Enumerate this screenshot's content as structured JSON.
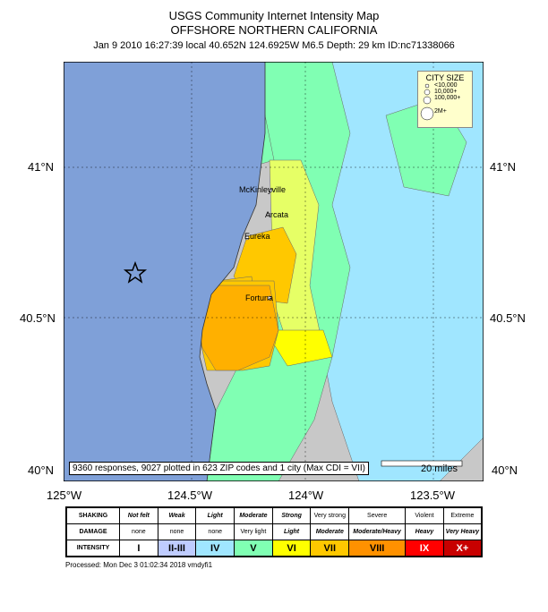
{
  "header": {
    "title": "USGS Community Internet Intensity Map",
    "region": "OFFSHORE NORTHERN CALIFORNIA",
    "event_info": "Jan 9 2010 16:27:39 local 40.652N 124.6925W M6.5 Depth: 29 km ID:nc71338066"
  },
  "axes": {
    "lat_labels": [
      "41°N",
      "40.5°N",
      "40°N"
    ],
    "lon_labels": [
      "125°W",
      "124.5°W",
      "124°W",
      "123.5°W"
    ]
  },
  "cities": [
    "McKinleyville",
    "Arcata",
    "Eureka",
    "Fortuna"
  ],
  "city_size_legend": {
    "title": "CITY SIZE",
    "items": [
      "<10,000",
      "10,000+",
      "100,000+",
      "2M+"
    ]
  },
  "epicenter": {
    "lat": 40.652,
    "lon": -124.6925
  },
  "responses_text": "9360 responses, 9027 plotted in 623 ZIP codes and 1 city (Max CDI = VII)",
  "scale_label": "20 miles",
  "intensity_legend": {
    "shaking_label": "SHAKING",
    "damage_label": "DAMAGE",
    "intensity_label": "INTENSITY",
    "shaking": [
      "Not felt",
      "Weak",
      "Light",
      "Moderate",
      "Strong",
      "Very strong",
      "Severe",
      "Violent",
      "Extreme"
    ],
    "damage": [
      "none",
      "none",
      "none",
      "Very light",
      "Light",
      "Moderate",
      "Moderate/Heavy",
      "Heavy",
      "Very Heavy"
    ],
    "intensity": [
      "I",
      "II-III",
      "IV",
      "V",
      "VI",
      "VII",
      "VIII",
      "IX",
      "X+"
    ],
    "colors": [
      "#ffffff",
      "#bfccff",
      "#a0e6ff",
      "#80ffb3",
      "#ffff00",
      "#ffc800",
      "#ff9100",
      "#ff0000",
      "#c80000"
    ]
  },
  "colors": {
    "ocean": "#7fa0d8",
    "no_data": "#c8c8c8",
    "iv": "#a0e6ff",
    "v": "#80ffb3",
    "vi": "#ffff00",
    "vii": "#ffc800"
  },
  "processed": "Processed: Mon Dec  3 01:02:34 2018 vmdyfi1"
}
